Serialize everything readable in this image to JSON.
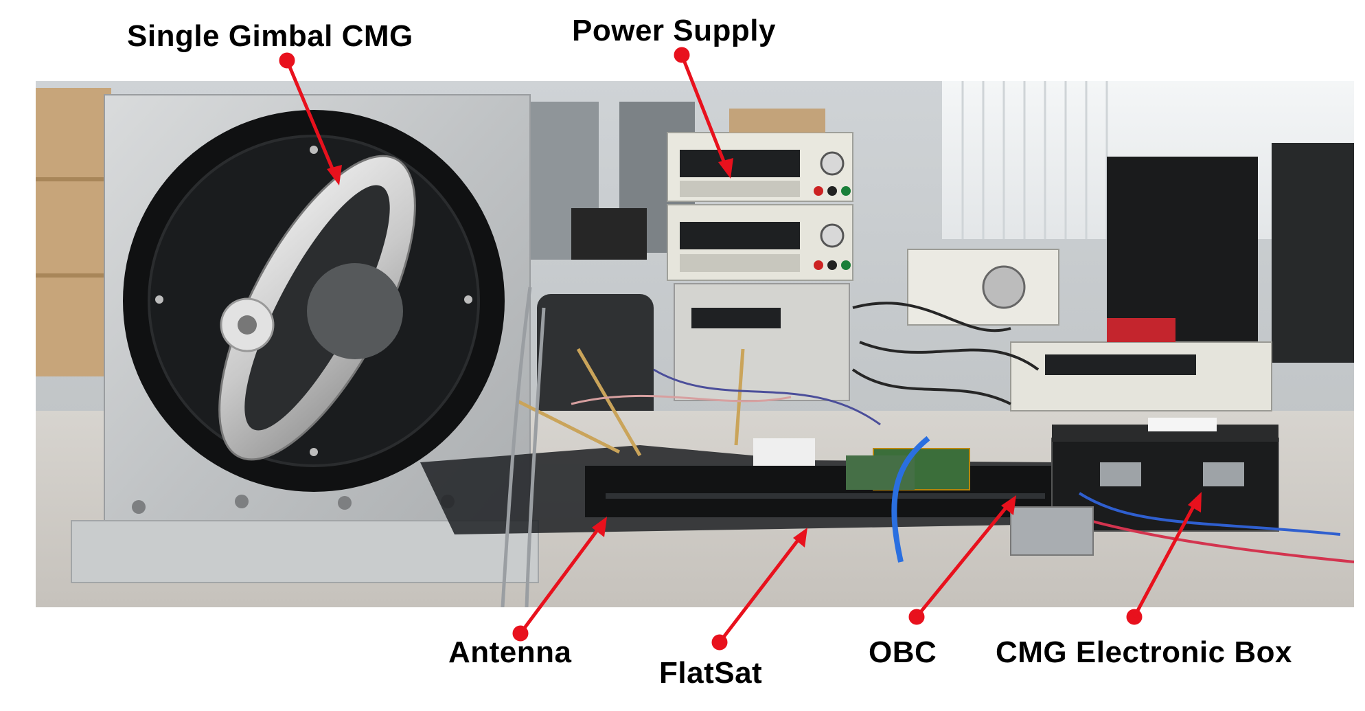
{
  "labels": {
    "single_gimbal_cmg": "Single Gimbal CMG",
    "power_supply": "Power Supply",
    "antenna": "Antenna",
    "flatsat": "FlatSat",
    "obc": "OBC",
    "cmg_electronic_box": "CMG Electronic Box"
  },
  "colors": {
    "annotation": "#e8111d",
    "label_text": "#000000"
  }
}
